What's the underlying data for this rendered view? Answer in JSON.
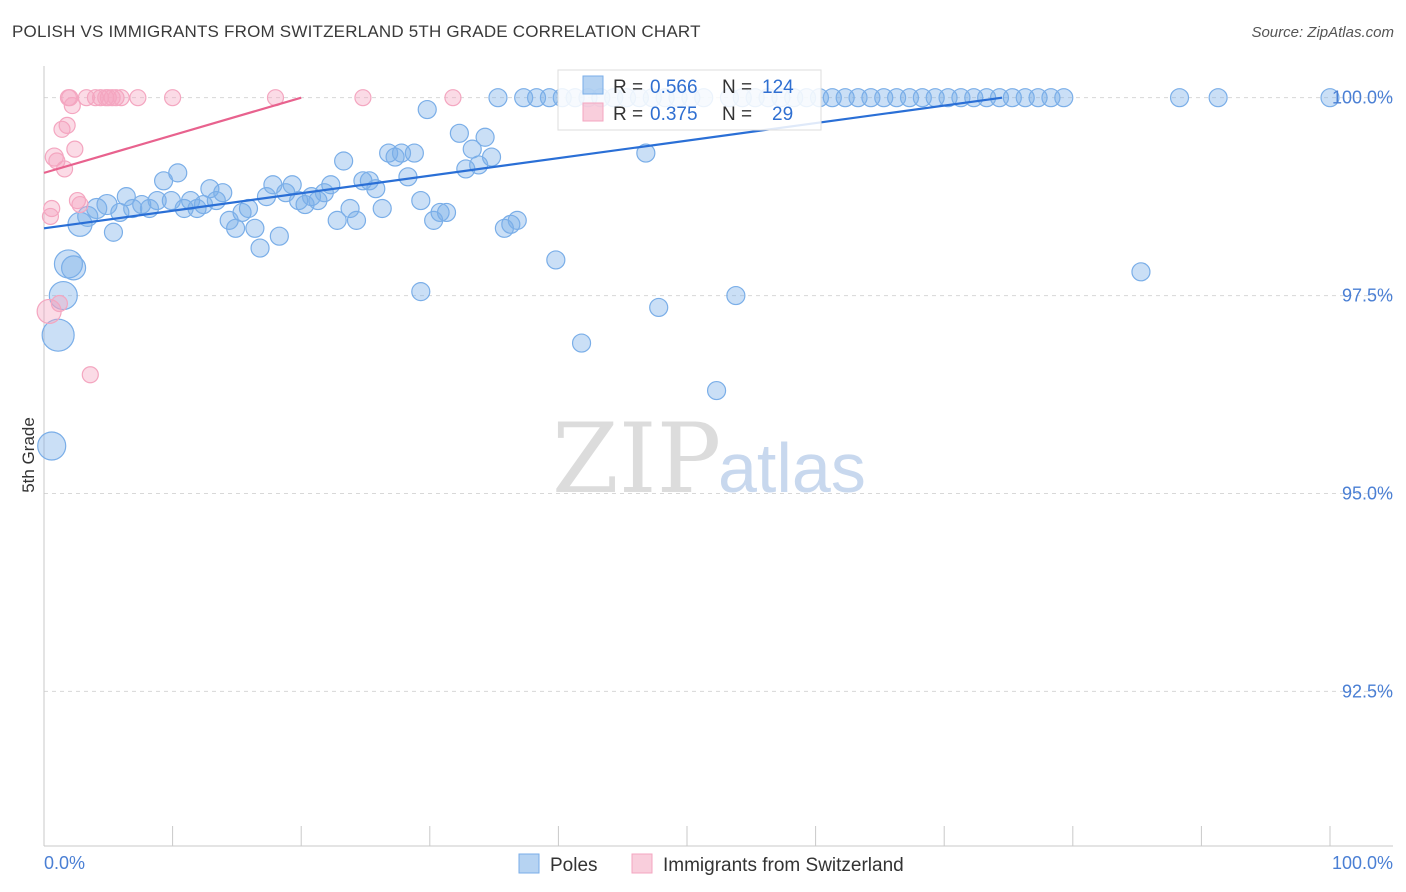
{
  "title": "POLISH VS IMMIGRANTS FROM SWITZERLAND 5TH GRADE CORRELATION CHART",
  "source": "Source: ZipAtlas.com",
  "watermark": {
    "part1": "ZIP",
    "part2": "atlas"
  },
  "chart_data": {
    "type": "scatter",
    "title": "POLISH VS IMMIGRANTS FROM SWITZERLAND 5TH GRADE CORRELATION CHART",
    "xlabel": "",
    "ylabel": "5th Grade",
    "xlim": [
      0,
      100
    ],
    "ylim": [
      90.8,
      100.4
    ],
    "x_tick_labels": {
      "min": "0.0%",
      "max": "100.0%"
    },
    "y_ticks": [
      {
        "value": 100.0,
        "label": "100.0%"
      },
      {
        "value": 97.5,
        "label": "97.5%"
      },
      {
        "value": 95.0,
        "label": "95.0%"
      },
      {
        "value": 92.5,
        "label": "92.5%"
      }
    ],
    "stats": [
      {
        "r_label": "R =",
        "r": "0.566",
        "n_label": "N =",
        "n": "124"
      },
      {
        "r_label": "R =",
        "r": "0.375",
        "n_label": "N =",
        "n": "29"
      }
    ],
    "series": [
      {
        "name": "Poles",
        "color": "#7aaee8",
        "line_color": "#2a6fd6",
        "trend": {
          "x": [
            0,
            74.5
          ],
          "y": [
            98.35,
            100.0
          ]
        },
        "points": [
          [
            0.6,
            95.6,
            14
          ],
          [
            1.1,
            97.0,
            16
          ],
          [
            1.5,
            97.5,
            14
          ],
          [
            1.9,
            97.9,
            14
          ],
          [
            2.3,
            97.85,
            12
          ],
          [
            2.8,
            98.4,
            12
          ],
          [
            3.4,
            98.5,
            10
          ],
          [
            4.1,
            98.6,
            10
          ],
          [
            4.9,
            98.65,
            10
          ],
          [
            5.4,
            98.3,
            9
          ],
          [
            5.9,
            98.55,
            9
          ],
          [
            6.4,
            98.75,
            9
          ],
          [
            6.9,
            98.6,
            9
          ],
          [
            7.6,
            98.65,
            9
          ],
          [
            8.2,
            98.6,
            9
          ],
          [
            8.8,
            98.7,
            9
          ],
          [
            9.3,
            98.95,
            9
          ],
          [
            9.9,
            98.7,
            9
          ],
          [
            10.4,
            99.05,
            9
          ],
          [
            10.9,
            98.6,
            9
          ],
          [
            11.4,
            98.7,
            9
          ],
          [
            11.9,
            98.6,
            9
          ],
          [
            12.4,
            98.65,
            9
          ],
          [
            12.9,
            98.85,
            9
          ],
          [
            13.4,
            98.7,
            9
          ],
          [
            13.9,
            98.8,
            9
          ],
          [
            14.4,
            98.45,
            9
          ],
          [
            14.9,
            98.35,
            9
          ],
          [
            15.4,
            98.55,
            9
          ],
          [
            15.9,
            98.6,
            9
          ],
          [
            16.4,
            98.35,
            9
          ],
          [
            16.8,
            98.1,
            9
          ],
          [
            17.3,
            98.75,
            9
          ],
          [
            17.8,
            98.9,
            9
          ],
          [
            18.3,
            98.25,
            9
          ],
          [
            18.8,
            98.8,
            9
          ],
          [
            19.3,
            98.9,
            9
          ],
          [
            19.8,
            98.7,
            9
          ],
          [
            20.3,
            98.65,
            9
          ],
          [
            20.8,
            98.75,
            9
          ],
          [
            21.3,
            98.7,
            9
          ],
          [
            21.8,
            98.8,
            9
          ],
          [
            22.3,
            98.9,
            9
          ],
          [
            22.8,
            98.45,
            9
          ],
          [
            23.3,
            99.2,
            9
          ],
          [
            23.8,
            98.6,
            9
          ],
          [
            24.3,
            98.45,
            9
          ],
          [
            24.8,
            98.95,
            9
          ],
          [
            25.3,
            98.95,
            9
          ],
          [
            25.8,
            98.85,
            9
          ],
          [
            26.3,
            98.6,
            9
          ],
          [
            26.8,
            99.3,
            9
          ],
          [
            27.3,
            99.25,
            9
          ],
          [
            27.8,
            99.3,
            9
          ],
          [
            28.3,
            99.0,
            9
          ],
          [
            28.8,
            99.3,
            9
          ],
          [
            29.3,
            98.7,
            9
          ],
          [
            29.8,
            99.85,
            9
          ],
          [
            30.3,
            98.45,
            9
          ],
          [
            30.8,
            98.55,
            9
          ],
          [
            31.3,
            98.55,
            9
          ],
          [
            32.3,
            99.55,
            9
          ],
          [
            32.8,
            99.1,
            9
          ],
          [
            33.3,
            99.35,
            9
          ],
          [
            33.8,
            99.15,
            9
          ],
          [
            34.3,
            99.5,
            9
          ],
          [
            34.8,
            99.25,
            9
          ],
          [
            35.3,
            100.0,
            9
          ],
          [
            35.8,
            98.35,
            9
          ],
          [
            36.3,
            98.4,
            9
          ],
          [
            36.8,
            98.45,
            9
          ],
          [
            37.3,
            100.0,
            9
          ],
          [
            38.3,
            100.0,
            9
          ],
          [
            39.3,
            100.0,
            9
          ],
          [
            39.8,
            97.95,
            9
          ],
          [
            40.3,
            100.0,
            9
          ],
          [
            41.3,
            100.0,
            9
          ],
          [
            41.8,
            96.9,
            9
          ],
          [
            42.3,
            100.0,
            9
          ],
          [
            43.3,
            100.0,
            9
          ],
          [
            44.3,
            100.0,
            9
          ],
          [
            45.3,
            100.0,
            9
          ],
          [
            46.3,
            100.0,
            9
          ],
          [
            46.8,
            99.3,
            9
          ],
          [
            47.3,
            100.0,
            9
          ],
          [
            47.8,
            97.35,
            9
          ],
          [
            48.3,
            100.0,
            9
          ],
          [
            49.3,
            100.0,
            9
          ],
          [
            50.3,
            100.0,
            9
          ],
          [
            51.3,
            100.0,
            9
          ],
          [
            52.3,
            96.3,
            9
          ],
          [
            53.3,
            100.0,
            9
          ],
          [
            53.8,
            97.5,
            9
          ],
          [
            54.3,
            100.0,
            9
          ],
          [
            55.3,
            100.0,
            9
          ],
          [
            56.3,
            100.0,
            9
          ],
          [
            57.3,
            100.0,
            9
          ],
          [
            58.3,
            100.0,
            9
          ],
          [
            59.3,
            100.0,
            9
          ],
          [
            60.3,
            100.0,
            9
          ],
          [
            61.3,
            100.0,
            9
          ],
          [
            62.3,
            100.0,
            9
          ],
          [
            63.3,
            100.0,
            9
          ],
          [
            64.3,
            100.0,
            9
          ],
          [
            65.3,
            100.0,
            9
          ],
          [
            66.3,
            100.0,
            9
          ],
          [
            67.3,
            100.0,
            9
          ],
          [
            68.3,
            100.0,
            9
          ],
          [
            69.3,
            100.0,
            9
          ],
          [
            70.3,
            100.0,
            9
          ],
          [
            71.3,
            100.0,
            9
          ],
          [
            72.3,
            100.0,
            9
          ],
          [
            73.3,
            100.0,
            9
          ],
          [
            74.3,
            100.0,
            9
          ],
          [
            75.3,
            100.0,
            9
          ],
          [
            76.3,
            100.0,
            9
          ],
          [
            77.3,
            100.0,
            9
          ],
          [
            78.3,
            100.0,
            9
          ],
          [
            79.3,
            100.0,
            9
          ],
          [
            85.3,
            97.8,
            9
          ],
          [
            88.3,
            100.0,
            9
          ],
          [
            91.3,
            100.0,
            9
          ],
          [
            100.0,
            100.0,
            9
          ],
          [
            29.3,
            97.55,
            9
          ]
        ]
      },
      {
        "name": "Immigrants from Switzerland",
        "color": "#f4a6c0",
        "line_color": "#e8628e",
        "trend": {
          "x": [
            0,
            20
          ],
          "y": [
            99.05,
            100.0
          ]
        },
        "points": [
          [
            0.4,
            97.3,
            12
          ],
          [
            0.5,
            98.5,
            8
          ],
          [
            0.6,
            98.6,
            8
          ],
          [
            0.8,
            99.25,
            9
          ],
          [
            1.0,
            99.2,
            8
          ],
          [
            1.2,
            97.4,
            8
          ],
          [
            1.4,
            99.6,
            8
          ],
          [
            1.6,
            99.1,
            8
          ],
          [
            1.8,
            99.65,
            8
          ],
          [
            2.0,
            100.0,
            8
          ],
          [
            2.2,
            99.9,
            8
          ],
          [
            2.4,
            99.35,
            8
          ],
          [
            2.6,
            98.7,
            8
          ],
          [
            2.8,
            98.65,
            8
          ],
          [
            3.6,
            96.5,
            8
          ],
          [
            4.0,
            100.0,
            8
          ],
          [
            4.4,
            100.0,
            8
          ],
          [
            4.8,
            100.0,
            8
          ],
          [
            5.0,
            100.0,
            8
          ],
          [
            5.3,
            100.0,
            8
          ],
          [
            5.6,
            100.0,
            8
          ],
          [
            6.0,
            100.0,
            8
          ],
          [
            7.3,
            100.0,
            8
          ],
          [
            10.0,
            100.0,
            8
          ],
          [
            18.0,
            100.0,
            8
          ],
          [
            24.8,
            100.0,
            8
          ],
          [
            31.8,
            100.0,
            8
          ],
          [
            1.9,
            100.0,
            8
          ],
          [
            3.3,
            100.0,
            8
          ]
        ]
      }
    ]
  }
}
